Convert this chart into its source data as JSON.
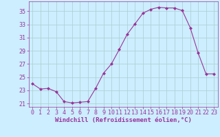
{
  "x": [
    0,
    1,
    2,
    3,
    4,
    5,
    6,
    7,
    8,
    9,
    10,
    11,
    12,
    13,
    14,
    15,
    16,
    17,
    18,
    19,
    20,
    21,
    22,
    23
  ],
  "y": [
    24.0,
    23.2,
    23.3,
    22.8,
    21.3,
    21.1,
    21.2,
    21.3,
    23.3,
    25.6,
    27.0,
    29.2,
    31.5,
    33.1,
    34.7,
    35.3,
    35.6,
    35.5,
    35.5,
    35.1,
    32.5,
    28.7,
    25.5,
    25.5
  ],
  "line_color": "#993399",
  "marker": "D",
  "marker_size": 2.0,
  "bg_color": "#cceeff",
  "grid_color": "#aacccc",
  "xlabel": "Windchill (Refroidissement éolien,°C)",
  "ylim": [
    20.5,
    36.5
  ],
  "xlim": [
    -0.5,
    23.5
  ],
  "yticks": [
    21,
    23,
    25,
    27,
    29,
    31,
    33,
    35
  ],
  "xticks": [
    0,
    1,
    2,
    3,
    4,
    5,
    6,
    7,
    8,
    9,
    10,
    11,
    12,
    13,
    14,
    15,
    16,
    17,
    18,
    19,
    20,
    21,
    22,
    23
  ],
  "tick_color": "#993399",
  "font_size_label": 6.5,
  "font_size_tick": 6.0
}
